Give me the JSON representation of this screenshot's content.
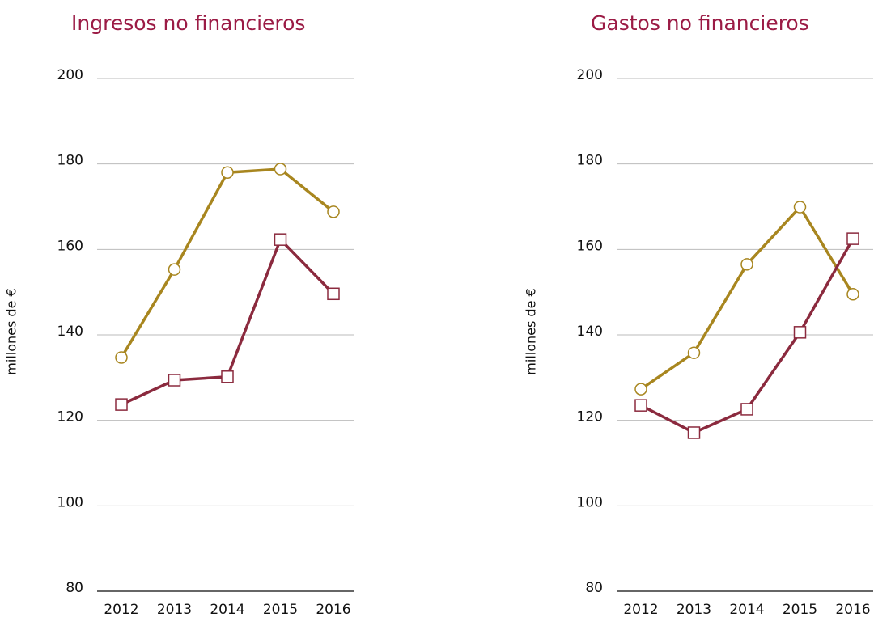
{
  "chart_data": [
    {
      "type": "line",
      "title": "Ingresos no financieros",
      "ylabel": "millones de €",
      "categories": [
        "2012",
        "2013",
        "2014",
        "2015",
        "2016"
      ],
      "ylim": [
        80,
        200
      ],
      "yticks": [
        80,
        100,
        120,
        140,
        160,
        180,
        200
      ],
      "grid": true,
      "series": [
        {
          "color": "#a8861f",
          "marker": "circle",
          "values": [
            134.7,
            155.3,
            178,
            178.8,
            168.8
          ]
        },
        {
          "color": "#8b2a3e",
          "marker": "square",
          "values": [
            123.7,
            129.4,
            130.2,
            162.3,
            149.6
          ]
        }
      ]
    },
    {
      "type": "line",
      "title": "Gastos no financieros",
      "ylabel": "millones de €",
      "categories": [
        "2012",
        "2013",
        "2014",
        "2015",
        "2016"
      ],
      "ylim": [
        80,
        200
      ],
      "yticks": [
        80,
        100,
        120,
        140,
        160,
        180,
        200
      ],
      "grid": true,
      "series": [
        {
          "color": "#a8861f",
          "marker": "circle",
          "values": [
            127.3,
            135.8,
            156.5,
            169.9,
            149.5
          ]
        },
        {
          "color": "#8b2a3e",
          "marker": "square",
          "values": [
            123.5,
            117.1,
            122.6,
            140.6,
            162.5
          ]
        }
      ]
    }
  ]
}
